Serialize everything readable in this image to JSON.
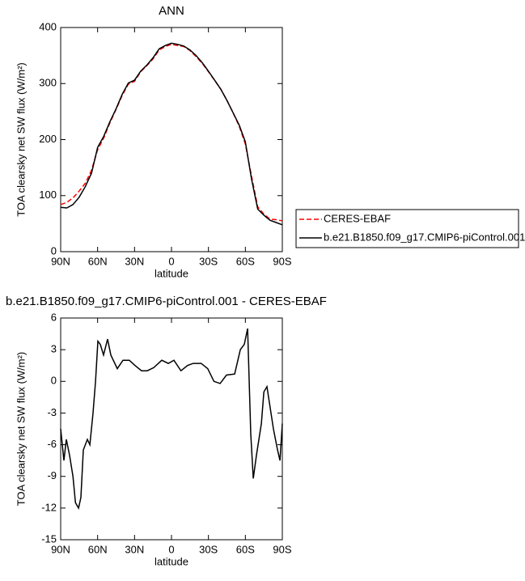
{
  "chart_data": [
    {
      "type": "line",
      "title": "ANN",
      "xlabel": "latitude",
      "ylabel": "TOA clearsky net SW flux (W/m²)",
      "xlim": [
        90,
        -90
      ],
      "xticks": [
        {
          "value": 90,
          "label": "90N"
        },
        {
          "value": 60,
          "label": "60N"
        },
        {
          "value": 30,
          "label": "30N"
        },
        0,
        {
          "value": -30,
          "label": "30S"
        },
        {
          "value": -60,
          "label": "60S"
        },
        {
          "value": -90,
          "label": "90S"
        }
      ],
      "ylim": [
        0,
        400
      ],
      "yticks": [
        0,
        100,
        200,
        300,
        400
      ],
      "legend": "right",
      "x": [
        90,
        85,
        80,
        75,
        70,
        65,
        60,
        55,
        50,
        45,
        40,
        35,
        30,
        25,
        20,
        15,
        10,
        5,
        0,
        -5,
        -10,
        -15,
        -20,
        -25,
        -30,
        -35,
        -40,
        -45,
        -50,
        -55,
        -60,
        -65,
        -70,
        -75,
        -80,
        -85,
        -90
      ],
      "series": [
        {
          "name": "CERES-EBAF",
          "color": "#ff0000",
          "style": "dashed",
          "values": [
            84,
            88,
            96,
            108,
            122,
            145,
            182,
            203,
            230,
            254,
            279,
            299,
            304,
            321,
            332,
            344,
            360,
            366,
            370,
            368,
            366,
            359,
            348,
            336,
            321,
            306,
            290,
            270,
            248,
            224,
            192,
            135,
            80,
            67,
            58,
            57,
            55
          ]
        },
        {
          "name": "b.e21.B1850.f09_g17.CMIP6-piControl.001",
          "color": "#000000",
          "style": "solid",
          "values": [
            79,
            78,
            84,
            97,
            116,
            140,
            186,
            206,
            232,
            255,
            281,
            301,
            306,
            322,
            333,
            346,
            362,
            368,
            372,
            370,
            367,
            360,
            350,
            337,
            322,
            306,
            290,
            270,
            248,
            226,
            196,
            130,
            76,
            65,
            56,
            52,
            48
          ]
        }
      ]
    },
    {
      "type": "line",
      "title": "b.e21.B1850.f09_g17.CMIP6-piControl.001 - CERES-EBAF",
      "xlabel": "latitude",
      "ylabel": "TOA clearsky net SW flux (W/m²)",
      "xlim": [
        90,
        -90
      ],
      "xticks": [
        {
          "value": 90,
          "label": "90N"
        },
        {
          "value": 60,
          "label": "60N"
        },
        {
          "value": 30,
          "label": "30N"
        },
        0,
        {
          "value": -30,
          "label": "30S"
        },
        {
          "value": -60,
          "label": "60S"
        },
        {
          "value": -90,
          "label": "90S"
        }
      ],
      "ylim": [
        -15,
        6
      ],
      "yticks": [
        -15,
        -12,
        -9,
        -6,
        -3,
        0,
        3,
        6
      ],
      "x": [
        90,
        87.4,
        85.4,
        82.8,
        80,
        78,
        75.5,
        73.6,
        71.6,
        68.3,
        66.3,
        63.7,
        61.7,
        59.8,
        57.8,
        55.2,
        51.9,
        49.3,
        44,
        39.4,
        34.2,
        29.6,
        24.3,
        19.7,
        14.4,
        7.9,
        2.6,
        -2,
        -7.7,
        -13,
        -17.6,
        -24.1,
        -29.4,
        -34.5,
        -39.5,
        -44.7,
        -51.3,
        -55.9,
        -59.1,
        -61.8,
        -64.4,
        -66.4,
        -69,
        -73,
        -75,
        -77.5,
        -79.5,
        -82.8,
        -86.1,
        -88.1,
        -90
      ],
      "series": [
        {
          "name": null,
          "color": "#000000",
          "style": "solid",
          "values": [
            -4.5,
            -7.5,
            -5.5,
            -7,
            -9,
            -11.5,
            -12,
            -11,
            -6.5,
            -5.5,
            -6,
            -3,
            0,
            3.8,
            3.5,
            2.5,
            4,
            2.5,
            1.2,
            2,
            2,
            1.5,
            1,
            1,
            1.3,
            2,
            1.7,
            2,
            1,
            1.5,
            1.7,
            1.7,
            1.2,
            0,
            -0.2,
            0.6,
            0.7,
            3,
            3.5,
            5,
            -5,
            -9.2,
            -7,
            -4,
            -1,
            -0.5,
            -2,
            -4.5,
            -6.5,
            -7.5,
            -4
          ]
        }
      ]
    }
  ]
}
